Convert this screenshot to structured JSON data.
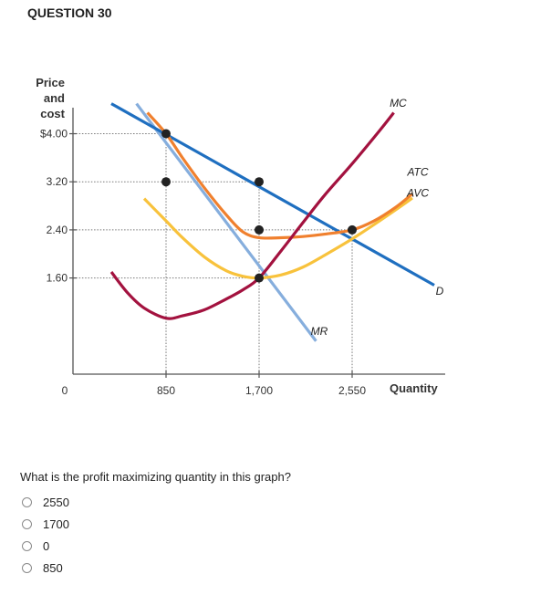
{
  "question": {
    "heading": "QUESTION 30",
    "prompt": "What is the profit maximizing quantity in this graph?",
    "options": [
      "2550",
      "1700",
      "0",
      "850"
    ]
  },
  "chart_data": {
    "type": "line",
    "ylabel_lines": [
      "Price",
      "and",
      "cost"
    ],
    "xlabel": "Quantity",
    "origin_label": "0",
    "xlim": [
      0,
      3400
    ],
    "ylim": [
      0,
      4.6
    ],
    "x_ticks": [
      {
        "value": 850,
        "label": "850"
      },
      {
        "value": 1700,
        "label": "1,700"
      },
      {
        "value": 2550,
        "label": "2,550"
      }
    ],
    "y_ticks": [
      {
        "value": 4.0,
        "label": "$4.00"
      },
      {
        "value": 3.2,
        "label": "3.20"
      },
      {
        "value": 2.4,
        "label": "2.40"
      },
      {
        "value": 1.6,
        "label": "1.60"
      }
    ],
    "series": [
      {
        "name": "D",
        "color": "#1f6fc0",
        "points": [
          [
            350,
            4.5
          ],
          [
            3300,
            1.48
          ]
        ]
      },
      {
        "name": "MR",
        "color": "#86aedd",
        "points": [
          [
            580,
            4.5
          ],
          [
            2220,
            0.55
          ]
        ]
      },
      {
        "name": "MC",
        "color": "#a3123f",
        "points": [
          [
            350,
            1.7
          ],
          [
            500,
            1.35
          ],
          [
            650,
            1.1
          ],
          [
            850,
            0.93
          ],
          [
            1000,
            0.97
          ],
          [
            1200,
            1.07
          ],
          [
            1400,
            1.25
          ],
          [
            1550,
            1.4
          ],
          [
            1700,
            1.6
          ],
          [
            1900,
            2.05
          ],
          [
            2100,
            2.52
          ],
          [
            2300,
            2.98
          ],
          [
            2550,
            3.5
          ],
          [
            2800,
            4.05
          ],
          [
            2930,
            4.35
          ]
        ]
      },
      {
        "name": "ATC",
        "color": "#f0802e",
        "points": [
          [
            680,
            4.35
          ],
          [
            850,
            4.0
          ],
          [
            1000,
            3.6
          ],
          [
            1200,
            3.1
          ],
          [
            1400,
            2.65
          ],
          [
            1550,
            2.37
          ],
          [
            1700,
            2.27
          ],
          [
            1900,
            2.27
          ],
          [
            2100,
            2.29
          ],
          [
            2300,
            2.33
          ],
          [
            2550,
            2.4
          ],
          [
            2750,
            2.55
          ],
          [
            2950,
            2.78
          ],
          [
            3100,
            3.0
          ]
        ]
      },
      {
        "name": "AVC",
        "color": "#f8c23c",
        "points": [
          [
            650,
            2.92
          ],
          [
            850,
            2.55
          ],
          [
            1000,
            2.27
          ],
          [
            1200,
            1.95
          ],
          [
            1400,
            1.72
          ],
          [
            1550,
            1.63
          ],
          [
            1700,
            1.6
          ],
          [
            1900,
            1.65
          ],
          [
            2100,
            1.78
          ],
          [
            2300,
            1.98
          ],
          [
            2550,
            2.25
          ],
          [
            2800,
            2.55
          ],
          [
            3000,
            2.8
          ],
          [
            3100,
            2.93
          ]
        ]
      }
    ],
    "curve_labels": [
      {
        "text": "MC",
        "x": 2970,
        "y": 4.45
      },
      {
        "text": "ATC",
        "x": 3150,
        "y": 3.3
      },
      {
        "text": "AVC",
        "x": 3150,
        "y": 2.95
      },
      {
        "text": "D",
        "x": 3350,
        "y": 1.32
      },
      {
        "text": "MR",
        "x": 2250,
        "y": 0.65
      }
    ],
    "markers": [
      {
        "x": 850,
        "y": 4.0
      },
      {
        "x": 850,
        "y": 3.2
      },
      {
        "x": 1700,
        "y": 3.2
      },
      {
        "x": 1700,
        "y": 2.4
      },
      {
        "x": 1700,
        "y": 1.6
      },
      {
        "x": 2550,
        "y": 2.4
      }
    ],
    "guides": [
      {
        "from": [
          0,
          4.0
        ],
        "to": [
          850,
          4.0
        ]
      },
      {
        "from": [
          0,
          3.2
        ],
        "to": [
          1700,
          3.2
        ]
      },
      {
        "from": [
          0,
          2.4
        ],
        "to": [
          2550,
          2.4
        ]
      },
      {
        "from": [
          0,
          1.6
        ],
        "to": [
          1700,
          1.6
        ]
      },
      {
        "from": [
          850,
          0
        ],
        "to": [
          850,
          4.0
        ]
      },
      {
        "from": [
          1700,
          0
        ],
        "to": [
          1700,
          3.2
        ]
      },
      {
        "from": [
          2550,
          0
        ],
        "to": [
          2550,
          2.4
        ]
      }
    ]
  }
}
